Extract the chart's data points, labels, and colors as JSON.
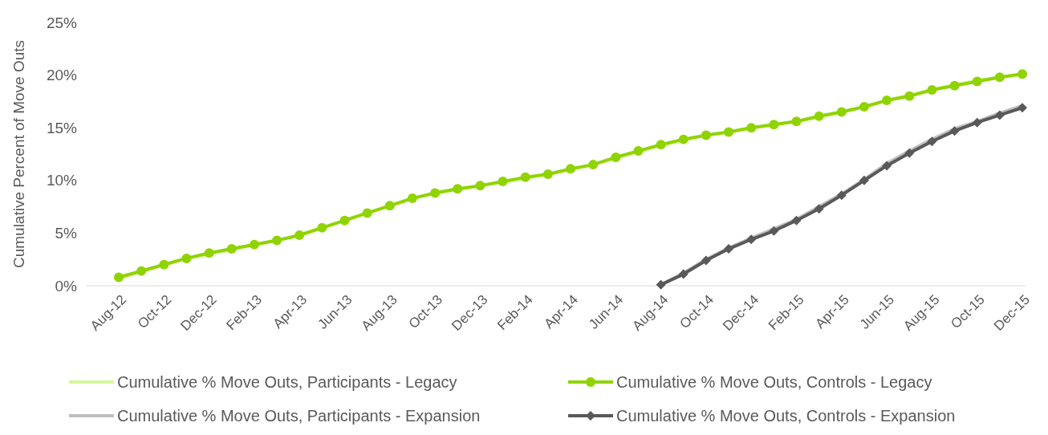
{
  "chart_data": {
    "type": "line",
    "ylabel": "Cumulative Percent of Move Outs",
    "categories": [
      "Aug-12",
      null,
      "Oct-12",
      null,
      "Dec-12",
      null,
      "Feb-13",
      null,
      "Apr-13",
      null,
      "Jun-13",
      null,
      "Aug-13",
      null,
      "Oct-13",
      null,
      "Dec-13",
      null,
      "Feb-14",
      null,
      "Apr-14",
      null,
      "Jun-14",
      null,
      "Aug-14",
      null,
      "Oct-14",
      null,
      "Dec-14",
      null,
      "Feb-15",
      null,
      "Apr-15",
      null,
      "Jun-15",
      null,
      "Aug-15",
      null,
      "Oct-15",
      null,
      "Dec-15"
    ],
    "ylim": [
      0,
      25
    ],
    "yticks": [
      {
        "value": 0,
        "label": "0%"
      },
      {
        "value": 5,
        "label": "5%"
      },
      {
        "value": 10,
        "label": "10%"
      },
      {
        "value": 15,
        "label": "15%"
      },
      {
        "value": 20,
        "label": "20%"
      },
      {
        "value": 25,
        "label": "25%"
      }
    ],
    "grid": false,
    "legend": "bottom",
    "series": [
      {
        "name": "Cumulative % Move Outs, Participants - Legacy",
        "color": "#d6f79c",
        "marker": "none",
        "values": [
          0.7,
          1.3,
          2.0,
          2.6,
          3.0,
          3.4,
          3.9,
          4.3,
          4.8,
          5.5,
          6.2,
          6.9,
          7.6,
          8.3,
          8.8,
          9.1,
          9.5,
          9.8,
          10.2,
          10.6,
          11.0,
          11.5,
          12.1,
          12.7,
          13.3,
          13.8,
          14.3,
          14.6,
          15.0,
          15.3,
          15.6,
          16.0,
          16.5,
          17.0,
          17.6,
          18.1,
          18.6,
          19.1,
          19.5,
          19.8,
          20.1
        ]
      },
      {
        "name": "Cumulative % Move Outs, Controls - Legacy",
        "color": "#8fd400",
        "marker": "circle",
        "values": [
          0.8,
          1.4,
          2.0,
          2.6,
          3.1,
          3.5,
          3.9,
          4.3,
          4.8,
          5.5,
          6.2,
          6.9,
          7.6,
          8.3,
          8.8,
          9.2,
          9.5,
          9.9,
          10.3,
          10.6,
          11.1,
          11.5,
          12.2,
          12.8,
          13.4,
          13.9,
          14.3,
          14.6,
          15.0,
          15.3,
          15.6,
          16.1,
          16.5,
          17.0,
          17.6,
          18.0,
          18.6,
          19.0,
          19.4,
          19.8,
          20.1
        ]
      },
      {
        "name": "Cumulative % Move Outs, Participants - Expansion",
        "color": "#bfbfbf",
        "marker": "none",
        "values": [
          null,
          null,
          null,
          null,
          null,
          null,
          null,
          null,
          null,
          null,
          null,
          null,
          null,
          null,
          null,
          null,
          null,
          null,
          null,
          null,
          null,
          null,
          null,
          null,
          0.1,
          1.2,
          2.5,
          3.6,
          4.5,
          5.4,
          6.3,
          7.5,
          8.7,
          10.1,
          11.6,
          12.8,
          13.9,
          14.9,
          15.6,
          16.4,
          17.1
        ]
      },
      {
        "name": "Cumulative % Move Outs, Controls - Expansion",
        "color": "#595959",
        "marker": "diamond",
        "values": [
          null,
          null,
          null,
          null,
          null,
          null,
          null,
          null,
          null,
          null,
          null,
          null,
          null,
          null,
          null,
          null,
          null,
          null,
          null,
          null,
          null,
          null,
          null,
          null,
          0.1,
          1.1,
          2.4,
          3.5,
          4.4,
          5.2,
          6.2,
          7.3,
          8.6,
          10.0,
          11.4,
          12.6,
          13.7,
          14.7,
          15.5,
          16.2,
          16.9
        ]
      }
    ]
  }
}
